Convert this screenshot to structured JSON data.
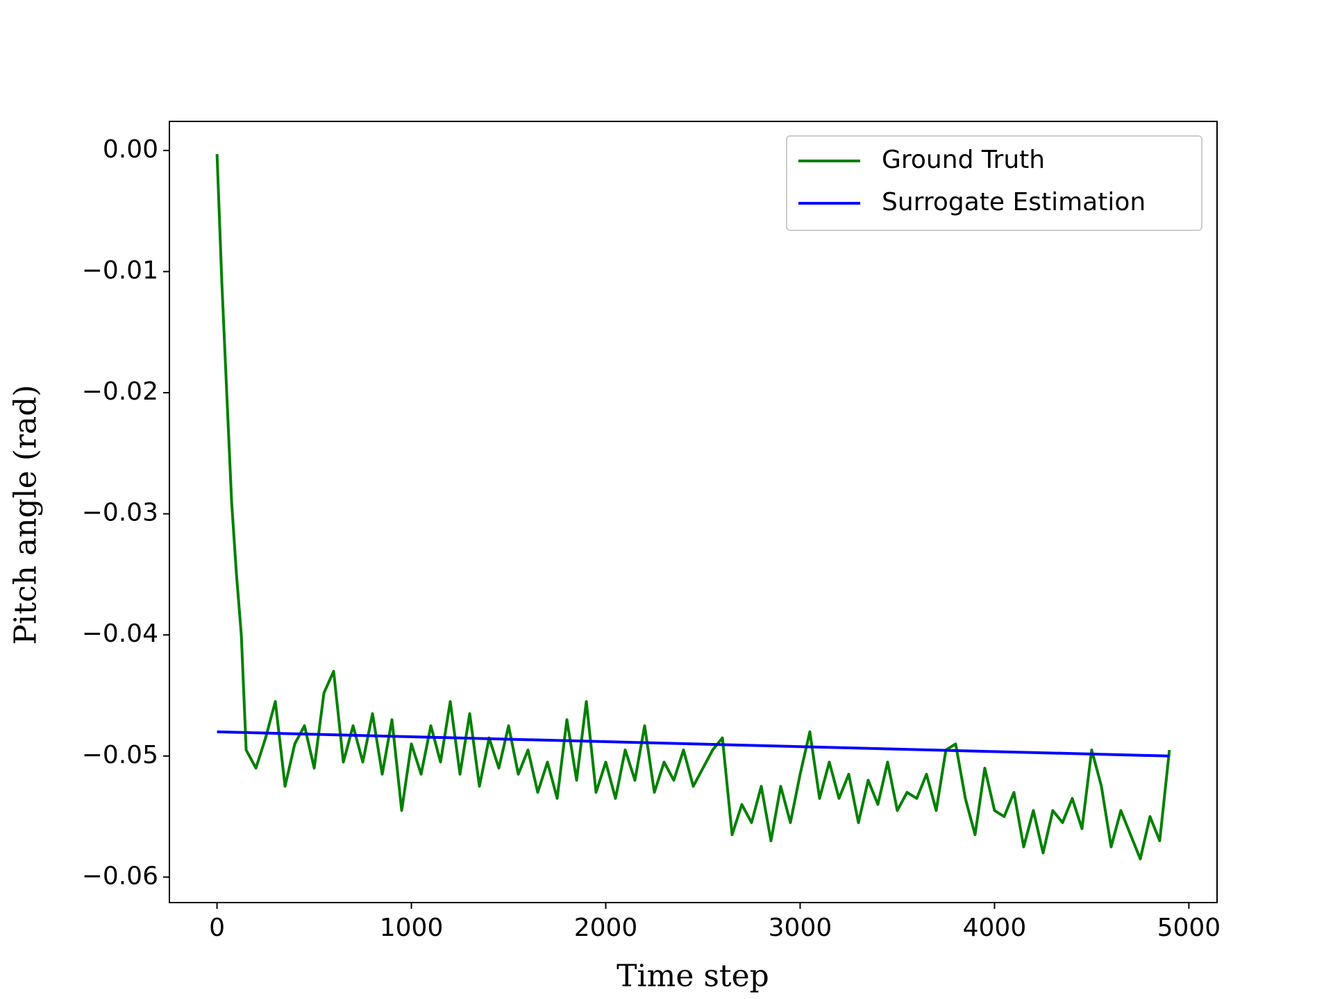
{
  "chart_data": {
    "type": "line",
    "xlabel": "Time step",
    "ylabel": "Pitch angle (rad)",
    "xlim": [
      -245,
      5145
    ],
    "ylim": [
      -0.0621,
      0.0024
    ],
    "xticks": [
      0,
      1000,
      2000,
      3000,
      4000,
      5000
    ],
    "yticks": [
      {
        "value": -0.06,
        "label": "−0.06"
      },
      {
        "value": -0.05,
        "label": "−0.05"
      },
      {
        "value": -0.04,
        "label": "−0.04"
      },
      {
        "value": -0.03,
        "label": "−0.03"
      },
      {
        "value": -0.02,
        "label": "−0.02"
      },
      {
        "value": -0.01,
        "label": "−0.01"
      },
      {
        "value": 0,
        "label": "0.00"
      }
    ],
    "grid": false,
    "legend": "upper right",
    "series": [
      {
        "name": "Ground Truth",
        "color": "#008000",
        "x": [
          0,
          25,
          50,
          75,
          100,
          125,
          150,
          200,
          250,
          300,
          350,
          400,
          450,
          500,
          550,
          600,
          650,
          700,
          750,
          800,
          850,
          900,
          950,
          1000,
          1050,
          1100,
          1150,
          1200,
          1250,
          1300,
          1350,
          1400,
          1450,
          1500,
          1550,
          1600,
          1650,
          1700,
          1750,
          1800,
          1850,
          1900,
          1950,
          2000,
          2050,
          2100,
          2150,
          2200,
          2250,
          2300,
          2350,
          2400,
          2450,
          2500,
          2550,
          2600,
          2650,
          2700,
          2750,
          2800,
          2850,
          2900,
          2950,
          3000,
          3050,
          3100,
          3150,
          3200,
          3250,
          3300,
          3350,
          3400,
          3450,
          3500,
          3550,
          3600,
          3650,
          3700,
          3750,
          3800,
          3850,
          3900,
          3950,
          4000,
          4050,
          4100,
          4150,
          4200,
          4250,
          4300,
          4350,
          4400,
          4450,
          4500,
          4550,
          4600,
          4650,
          4700,
          4750,
          4800,
          4850,
          4900
        ],
        "values": [
          -0.0003,
          -0.011,
          -0.02,
          -0.029,
          -0.035,
          -0.04,
          -0.0495,
          -0.051,
          -0.0485,
          -0.0455,
          -0.0525,
          -0.049,
          -0.0475,
          -0.051,
          -0.0448,
          -0.043,
          -0.0505,
          -0.0475,
          -0.0505,
          -0.0465,
          -0.0515,
          -0.047,
          -0.0545,
          -0.049,
          -0.0515,
          -0.0475,
          -0.0505,
          -0.0455,
          -0.0515,
          -0.0465,
          -0.0525,
          -0.0485,
          -0.051,
          -0.0475,
          -0.0515,
          -0.0495,
          -0.053,
          -0.0505,
          -0.0535,
          -0.047,
          -0.052,
          -0.0455,
          -0.053,
          -0.0505,
          -0.0535,
          -0.0495,
          -0.052,
          -0.0475,
          -0.053,
          -0.0505,
          -0.052,
          -0.0495,
          -0.0525,
          -0.051,
          -0.0495,
          -0.0485,
          -0.0565,
          -0.054,
          -0.0555,
          -0.0525,
          -0.057,
          -0.0525,
          -0.0555,
          -0.0515,
          -0.048,
          -0.0535,
          -0.0505,
          -0.0535,
          -0.0515,
          -0.0555,
          -0.052,
          -0.054,
          -0.0505,
          -0.0545,
          -0.053,
          -0.0535,
          -0.0515,
          -0.0545,
          -0.0495,
          -0.049,
          -0.0535,
          -0.0565,
          -0.051,
          -0.0545,
          -0.055,
          -0.053,
          -0.0575,
          -0.0545,
          -0.058,
          -0.0545,
          -0.0555,
          -0.0535,
          -0.056,
          -0.0495,
          -0.0525,
          -0.0575,
          -0.0545,
          -0.0565,
          -0.0585,
          -0.055,
          -0.057,
          -0.0495
        ]
      },
      {
        "name": "Surrogate Estimation",
        "color": "#0000ff",
        "x": [
          0,
          4900
        ],
        "values": [
          -0.048,
          -0.05
        ]
      }
    ]
  }
}
